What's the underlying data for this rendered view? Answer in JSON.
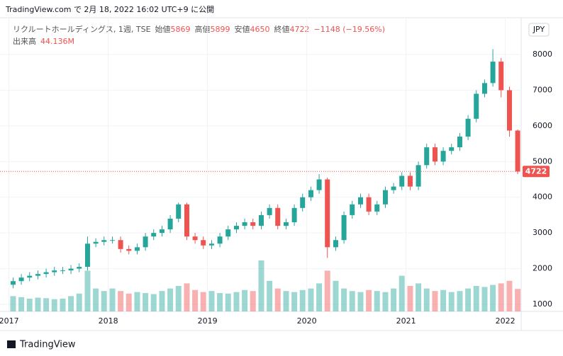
{
  "chart_data": {
    "type": "candlestick",
    "published": "TradingView.com で 2月 18, 2022 16:02 UTC+9 に公開",
    "title": "リクルートホールディングス, 1週, TSE",
    "ohlc_labels": [
      "始値",
      "高値",
      "安値",
      "終値"
    ],
    "ohlc_values": [
      5869,
      5899,
      4650,
      4722
    ],
    "change": "−1148 (−19.56%)",
    "volume_label": "出来高",
    "volume_value_label": "44.136M",
    "currency": "JPY",
    "last_price": 4722,
    "brand": "TradingView",
    "up_color": "#26a69a",
    "down_color": "#ef5350",
    "x": [
      2017.042,
      2017.125,
      2017.208,
      2017.292,
      2017.375,
      2017.458,
      2017.542,
      2017.625,
      2017.708,
      2017.792,
      2017.875,
      2017.958,
      2018.042,
      2018.125,
      2018.208,
      2018.292,
      2018.375,
      2018.458,
      2018.542,
      2018.625,
      2018.708,
      2018.792,
      2018.875,
      2018.958,
      2019.042,
      2019.125,
      2019.208,
      2019.292,
      2019.375,
      2019.458,
      2019.542,
      2019.625,
      2019.708,
      2019.792,
      2019.875,
      2019.958,
      2020.042,
      2020.125,
      2020.208,
      2020.292,
      2020.375,
      2020.458,
      2020.542,
      2020.625,
      2020.708,
      2020.792,
      2020.875,
      2020.958,
      2021.042,
      2021.125,
      2021.208,
      2021.292,
      2021.375,
      2021.458,
      2021.542,
      2021.625,
      2021.708,
      2021.792,
      2021.875,
      2021.958,
      2022.042,
      2022.125
    ],
    "open": [
      1550,
      1650,
      1750,
      1800,
      1850,
      1900,
      1950,
      1950,
      2000,
      2050,
      2700,
      2750,
      2800,
      2800,
      2550,
      2500,
      2600,
      2900,
      3000,
      3100,
      3400,
      3800,
      2900,
      2800,
      2650,
      2700,
      2900,
      3100,
      3200,
      3300,
      3200,
      3500,
      3700,
      3200,
      3300,
      3700,
      4000,
      4200,
      4500,
      2600,
      2800,
      3500,
      3800,
      4000,
      3600,
      3800,
      4200,
      4300,
      4600,
      4300,
      4900,
      5400,
      5000,
      5300,
      5400,
      5700,
      6200,
      6900,
      7200,
      7800,
      7000,
      5869
    ],
    "high": [
      1750,
      1850,
      1900,
      1950,
      2000,
      2050,
      2050,
      2100,
      2150,
      2900,
      2850,
      2900,
      2900,
      2900,
      2650,
      2700,
      3000,
      3100,
      3200,
      3500,
      3850,
      3850,
      3000,
      2900,
      2800,
      3000,
      3200,
      3300,
      3400,
      3400,
      3600,
      3800,
      3800,
      3400,
      3800,
      4100,
      4300,
      4650,
      4550,
      2900,
      3600,
      3900,
      4100,
      4100,
      3900,
      4300,
      4400,
      4700,
      4700,
      5000,
      5500,
      5500,
      5400,
      5500,
      5800,
      6300,
      7000,
      7300,
      8150,
      7900,
      7100,
      5899
    ],
    "low": [
      1450,
      1550,
      1650,
      1700,
      1750,
      1800,
      1850,
      1850,
      1900,
      1950,
      2600,
      2650,
      2700,
      2450,
      2400,
      2400,
      2500,
      2800,
      2900,
      3000,
      3300,
      2800,
      2700,
      2550,
      2550,
      2600,
      2800,
      3000,
      3100,
      3100,
      3100,
      3400,
      3100,
      3100,
      3200,
      3600,
      3900,
      4100,
      2300,
      2500,
      2700,
      3400,
      3700,
      3500,
      3500,
      3700,
      4100,
      4200,
      4200,
      4200,
      4800,
      4900,
      4900,
      5200,
      5300,
      5600,
      6100,
      6800,
      7100,
      6800,
      5700,
      4650
    ],
    "close": [
      1650,
      1750,
      1800,
      1850,
      1900,
      1950,
      1950,
      2000,
      2050,
      2700,
      2750,
      2800,
      2800,
      2550,
      2500,
      2600,
      2900,
      3000,
      3100,
      3400,
      3800,
      2900,
      2800,
      2650,
      2700,
      2900,
      3100,
      3200,
      3300,
      3200,
      3500,
      3700,
      3200,
      3300,
      3700,
      4000,
      4200,
      4500,
      2600,
      2800,
      3500,
      3800,
      4000,
      3600,
      3800,
      4200,
      4300,
      4600,
      4300,
      4900,
      5400,
      5000,
      5300,
      5400,
      5700,
      6200,
      6900,
      7200,
      7800,
      7000,
      5869,
      4722
    ],
    "volume": [
      30,
      28,
      25,
      27,
      26,
      24,
      25,
      30,
      35,
      80,
      45,
      40,
      45,
      40,
      35,
      38,
      36,
      34,
      40,
      45,
      50,
      55,
      42,
      38,
      40,
      36,
      35,
      38,
      42,
      40,
      100,
      60,
      45,
      40,
      38,
      42,
      45,
      55,
      80,
      60,
      45,
      40,
      38,
      42,
      40,
      38,
      45,
      70,
      50,
      55,
      45,
      40,
      42,
      38,
      40,
      45,
      50,
      48,
      52,
      55,
      60,
      44.136
    ],
    "xlim": [
      2016.91,
      2022.16
    ],
    "xticks": [
      2017,
      2018,
      2019,
      2020,
      2021,
      2022
    ],
    "ylim": [
      900,
      8300
    ],
    "yticks": [
      1000,
      2000,
      3000,
      4000,
      5000,
      6000,
      7000,
      8000
    ],
    "grid": true
  }
}
